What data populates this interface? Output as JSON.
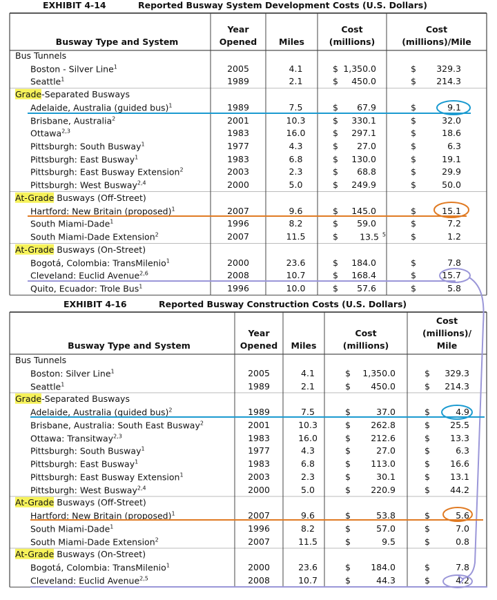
{
  "exhibits": [
    {
      "number": "EXHIBIT 4-14",
      "title": "Reported Busway System Development Costs (U.S. Dollars)",
      "currency": "$",
      "headers": [
        [
          "Busway Type and System"
        ],
        [
          "Year",
          "Opened"
        ],
        [
          "Miles"
        ],
        [
          "Cost",
          "(millions)"
        ],
        [
          "Cost",
          "(millions)/Mile"
        ]
      ],
      "groups": [
        {
          "label": "Bus Tunnels",
          "rows": [
            {
              "name": "Boston - Silver Line",
              "note": "1",
              "year": "2005",
              "miles": "4.1",
              "cost": "1,350.0",
              "per_mile": "329.3"
            },
            {
              "name": "Seattle",
              "note": "1",
              "year": "1989",
              "miles": "2.1",
              "cost": "450.0",
              "per_mile": "214.3"
            }
          ]
        },
        {
          "highlight": "Grade",
          "label": "-Separated Busways",
          "rows": [
            {
              "name": "Adelaide, Australia (guided bus)",
              "note": "1",
              "year": "1989",
              "miles": "7.5",
              "cost": "67.9",
              "per_mile": "9.1"
            },
            {
              "name": "Brisbane, Australia",
              "note": "2",
              "year": "2001",
              "miles": "10.3",
              "cost": "330.1",
              "per_mile": "32.0"
            },
            {
              "name": "Ottawa",
              "note": "2,3",
              "year": "1983",
              "miles": "16.0",
              "cost": "297.1",
              "per_mile": "18.6"
            },
            {
              "name": "Pittsburgh: South Busway",
              "note": "1",
              "year": "1977",
              "miles": "4.3",
              "cost": "27.0",
              "per_mile": "6.3"
            },
            {
              "name": "Pittsburgh: East Busway",
              "note": "1",
              "year": "1983",
              "miles": "6.8",
              "cost": "130.0",
              "per_mile": "19.1"
            },
            {
              "name": "Pittsburgh: East Busway Extension",
              "note": "2",
              "year": "2003",
              "miles": "2.3",
              "cost": "68.8",
              "per_mile": "29.9"
            },
            {
              "name": "Pittsburgh: West Busway",
              "note": "2,4",
              "year": "2000",
              "miles": "5.0",
              "cost": "249.9",
              "per_mile": "50.0"
            }
          ]
        },
        {
          "highlight": "At-Grade",
          "label": " Busways (Off-Street)",
          "rows": [
            {
              "name": "Hartford: New Britain (proposed)",
              "note": "1",
              "year": "2007",
              "miles": "9.6",
              "cost": "145.0",
              "per_mile": "15.1"
            },
            {
              "name": "South Miami-Dade",
              "note": "1",
              "year": "1996",
              "miles": "8.2",
              "cost": "59.0",
              "per_mile": "7.2"
            },
            {
              "name": "South Miami-Dade Extension",
              "note": "2",
              "year": "2007",
              "miles": "11.5",
              "cost": "13.5",
              "cost_note": "5",
              "per_mile": "1.2"
            }
          ]
        },
        {
          "highlight": "At-Grade",
          "label": " Busways (On-Street)",
          "rows": [
            {
              "name": "Bogotá, Colombia: TransMilenio",
              "note": "1",
              "year": "2000",
              "miles": "23.6",
              "cost": "184.0",
              "per_mile": "7.8"
            },
            {
              "name": "Cleveland: Euclid Avenue",
              "note": "2,6",
              "year": "2008",
              "miles": "10.7",
              "cost": "168.4",
              "per_mile": "15.7"
            },
            {
              "name": "Quito, Ecuador: Trole Bus",
              "note": "1",
              "year": "1996",
              "miles": "10.0",
              "cost": "57.6",
              "per_mile": "5.8"
            }
          ]
        }
      ]
    },
    {
      "number": "EXHIBIT 4-16",
      "title": "Reported Busway Construction Costs (U.S. Dollars)",
      "currency": "$",
      "headers": [
        [
          "Busway Type and System"
        ],
        [
          "Year",
          "Opened"
        ],
        [
          "Miles"
        ],
        [
          "Cost",
          "(millions)"
        ],
        [
          "Cost",
          "(millions)/",
          "Mile"
        ]
      ],
      "groups": [
        {
          "label": "Bus Tunnels",
          "rows": [
            {
              "name": "Boston: Silver Line",
              "note": "1",
              "year": "2005",
              "miles": "4.1",
              "cost": "1,350.0",
              "per_mile": "329.3"
            },
            {
              "name": "Seattle",
              "note": "1",
              "year": "1989",
              "miles": "2.1",
              "cost": "450.0",
              "per_mile": "214.3"
            }
          ]
        },
        {
          "highlight": "Grade",
          "label": "-Separated Busways",
          "rows": [
            {
              "name": "Adelaide, Australia (guided bus)",
              "note": "2",
              "year": "1989",
              "miles": "7.5",
              "cost": "37.0",
              "per_mile": "4.9"
            },
            {
              "name": "Brisbane, Australia: South East Busway",
              "note": "2",
              "year": "2001",
              "miles": "10.3",
              "cost": "262.8",
              "per_mile": "25.5"
            },
            {
              "name": "Ottawa: Transitway",
              "note": "2,3",
              "year": "1983",
              "miles": "16.0",
              "cost": "212.6",
              "per_mile": "13.3"
            },
            {
              "name": "Pittsburgh: South Busway",
              "note": "1",
              "year": "1977",
              "miles": "4.3",
              "cost": "27.0",
              "per_mile": "6.3"
            },
            {
              "name": "Pittsburgh: East Busway",
              "note": "1",
              "year": "1983",
              "miles": "6.8",
              "cost": "113.0",
              "per_mile": "16.6"
            },
            {
              "name": "Pittsburgh: East Busway Extension",
              "note": "1",
              "year": "2003",
              "miles": "2.3",
              "cost": "30.1",
              "per_mile": "13.1"
            },
            {
              "name": "Pittsburgh: West Busway",
              "note": "2,4",
              "year": "2000",
              "miles": "5.0",
              "cost": "220.9",
              "per_mile": "44.2"
            }
          ]
        },
        {
          "highlight": "At-Grade",
          "label": " Busways (Off-Street)",
          "rows": [
            {
              "name": "Hartford: New Britain (proposed)",
              "note": "1",
              "year": "2007",
              "miles": "9.6",
              "cost": "53.8",
              "per_mile": "5.6"
            },
            {
              "name": "South Miami-Dade",
              "note": "1",
              "year": "1996",
              "miles": "8.2",
              "cost": "57.0",
              "per_mile": "7.0"
            },
            {
              "name": "South Miami-Dade Extension",
              "note": "2",
              "year": "2007",
              "miles": "11.5",
              "cost": "9.5",
              "per_mile": "0.8"
            }
          ]
        },
        {
          "highlight": "At-Grade",
          "label": " Busways (On-Street)",
          "rows": [
            {
              "name": "Bogotá, Colombia: TransMilenio",
              "note": "1",
              "year": "2000",
              "miles": "23.6",
              "cost": "184.0",
              "per_mile": "7.8"
            },
            {
              "name": "Cleveland: Euclid Avenue",
              "note": "2,5",
              "year": "2008",
              "miles": "10.7",
              "cost": "44.3",
              "per_mile": "4.2"
            }
          ]
        }
      ]
    }
  ]
}
